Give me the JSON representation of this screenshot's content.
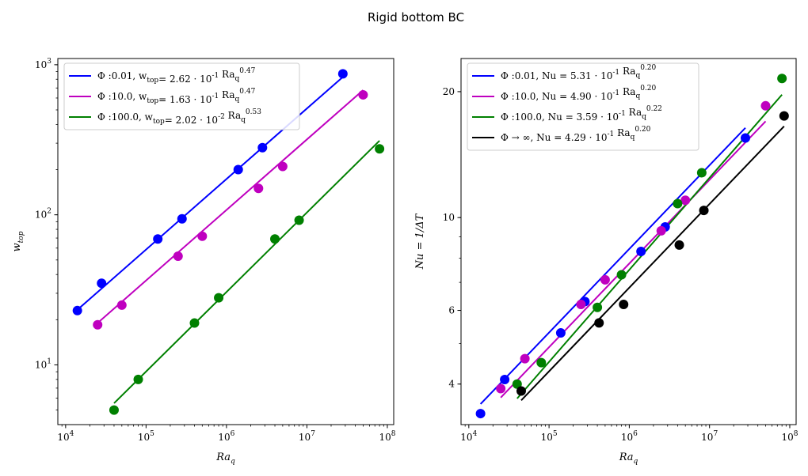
{
  "suptitle": "Rigid bottom BC",
  "colors": {
    "blue": "#0000ff",
    "magenta": "#bf00bf",
    "green": "#008000",
    "black": "#000000"
  },
  "chart_data": [
    {
      "type": "scatter",
      "scale": "log-log",
      "xlabel": "Ra_q",
      "ylabel": "w_top",
      "xlim": [
        8000,
        120000000
      ],
      "ylim": [
        4,
        1100
      ],
      "x_ticks": [
        {
          "value": 10000,
          "label": "10^4"
        },
        {
          "value": 100000,
          "label": "10^5"
        },
        {
          "value": 1000000,
          "label": "10^6"
        },
        {
          "value": 10000000,
          "label": "10^7"
        },
        {
          "value": 100000000,
          "label": "10^8"
        }
      ],
      "y_ticks": [
        {
          "value": 10,
          "label": "10^1"
        },
        {
          "value": 100,
          "label": "10^2"
        },
        {
          "value": 1000,
          "label": "10^3"
        }
      ],
      "legend_position": "upper-left",
      "series": [
        {
          "name": "Φ :0.01, w_top= 2.62 · 10^-1 Ra_q^0.47",
          "color": "#0000ff",
          "points": [
            [
              14000,
              23
            ],
            [
              28000,
              35
            ],
            [
              140000,
              69
            ],
            [
              280000,
              94
            ],
            [
              1400000,
              200
            ],
            [
              2800000,
              280
            ],
            [
              28000000,
              870
            ]
          ],
          "fit": {
            "coef": 0.262,
            "exp": 0.47,
            "x_range": [
              14000,
              28000000
            ]
          }
        },
        {
          "name": "Φ :10.0, w_top= 1.63 · 10^-1 Ra_q^0.47",
          "color": "#bf00bf",
          "points": [
            [
              25000,
              18.5
            ],
            [
              50000,
              25
            ],
            [
              250000,
              53
            ],
            [
              500000,
              72
            ],
            [
              2500000,
              150
            ],
            [
              5000000,
              210
            ],
            [
              50000000,
              630
            ]
          ],
          "fit": {
            "coef": 0.163,
            "exp": 0.47,
            "x_range": [
              25000,
              50000000
            ]
          }
        },
        {
          "name": "Φ :100.0, w_top= 2.02 · 10^-2 Ra_q^0.53",
          "color": "#008000",
          "points": [
            [
              40000,
              5
            ],
            [
              80000,
              8
            ],
            [
              400000,
              19
            ],
            [
              800000,
              28
            ],
            [
              4000000,
              69
            ],
            [
              8000000,
              92
            ],
            [
              80000000,
              275
            ]
          ],
          "fit": {
            "coef": 0.0202,
            "exp": 0.53,
            "x_range": [
              40000,
              80000000
            ]
          }
        }
      ]
    },
    {
      "type": "scatter",
      "scale": "log-log",
      "xlabel": "Ra_q",
      "ylabel": "Nu = 1/ΔT",
      "xlim": [
        8000,
        120000000
      ],
      "ylim": [
        3.2,
        24
      ],
      "x_ticks": [
        {
          "value": 10000,
          "label": "10^4"
        },
        {
          "value": 100000,
          "label": "10^5"
        },
        {
          "value": 1000000,
          "label": "10^6"
        },
        {
          "value": 10000000,
          "label": "10^7"
        },
        {
          "value": 100000000,
          "label": "10^8"
        }
      ],
      "y_ticks": [
        {
          "value": 4,
          "label": "4"
        },
        {
          "value": 6,
          "label": "6"
        },
        {
          "value": 10,
          "label": "10"
        },
        {
          "value": 20,
          "label": "20"
        }
      ],
      "legend_position": "upper-left",
      "series": [
        {
          "name": "Φ :0.01, Nu = 5.31 · 10^-1 Ra_q^0.20",
          "color": "#0000ff",
          "points": [
            [
              14000,
              3.4
            ],
            [
              28000,
              4.1
            ],
            [
              140000,
              5.3
            ],
            [
              280000,
              6.3
            ],
            [
              1400000,
              8.3
            ],
            [
              2800000,
              9.5
            ],
            [
              28000000,
              15.5
            ]
          ],
          "fit": {
            "coef": 0.531,
            "exp": 0.2,
            "x_range": [
              14000,
              28000000
            ]
          }
        },
        {
          "name": "Φ :10.0, Nu = 4.90 · 10^-1 Ra_q^0.20",
          "color": "#bf00bf",
          "points": [
            [
              25000,
              3.9
            ],
            [
              50000,
              4.6
            ],
            [
              250000,
              6.2
            ],
            [
              500000,
              7.1
            ],
            [
              2500000,
              9.3
            ],
            [
              5000000,
              11
            ],
            [
              50000000,
              18.5
            ]
          ],
          "fit": {
            "coef": 0.49,
            "exp": 0.2,
            "x_range": [
              25000,
              50000000
            ]
          }
        },
        {
          "name": "Φ :100.0, Nu = 3.59 · 10^-1 Ra_q^0.22",
          "color": "#008000",
          "points": [
            [
              40000,
              4.0
            ],
            [
              80000,
              4.5
            ],
            [
              400000,
              6.1
            ],
            [
              800000,
              7.3
            ],
            [
              4000000,
              10.8
            ],
            [
              8000000,
              12.8
            ],
            [
              80000000,
              21.5
            ]
          ],
          "fit": {
            "coef": 0.359,
            "exp": 0.22,
            "x_range": [
              40000,
              80000000
            ]
          }
        },
        {
          "name": "Φ → ∞, Nu = 4.29 · 10^-1 Ra_q^0.20",
          "color": "#000000",
          "points": [
            [
              45000,
              3.85
            ],
            [
              420000,
              5.6
            ],
            [
              850000,
              6.2
            ],
            [
              4200000,
              8.6
            ],
            [
              8500000,
              10.4
            ],
            [
              85000000,
              17.5
            ]
          ],
          "fit": {
            "coef": 0.429,
            "exp": 0.2,
            "x_range": [
              45000,
              85000000
            ]
          }
        }
      ]
    }
  ]
}
